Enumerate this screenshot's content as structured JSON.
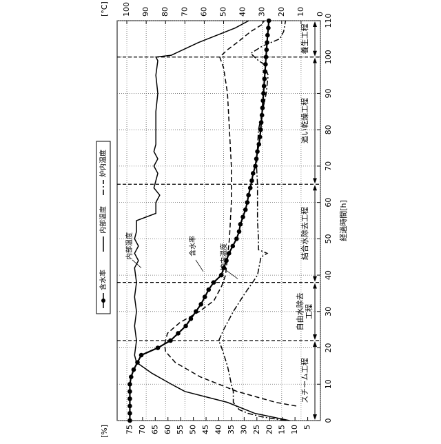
{
  "chart_data": {
    "type": "line",
    "xlabel": "経過時間[h]",
    "ylabel": "[%]",
    "y2label": "[°C]",
    "xlim": [
      0,
      110
    ],
    "xticks": [
      0,
      10,
      20,
      30,
      40,
      50,
      60,
      70,
      80,
      90,
      100,
      110
    ],
    "ylim": [
      0,
      80
    ],
    "yticks": [
      5,
      10,
      15,
      20,
      25,
      30,
      35,
      40,
      45,
      50,
      55,
      60,
      65,
      70,
      75
    ],
    "y2lim": [
      0,
      105
    ],
    "y2ticks": [
      0,
      10,
      20,
      30,
      40,
      50,
      60,
      70,
      80,
      90,
      100
    ],
    "grid": true,
    "legend": "top-left",
    "series": [
      {
        "name": "含水率",
        "color": "#000000",
        "style": "marker",
        "x": [
          0,
          2,
          4,
          6,
          8,
          10,
          12,
          14,
          16,
          18,
          20,
          22,
          24,
          26,
          28,
          30,
          32,
          34,
          36,
          38,
          40,
          42,
          44,
          46,
          48,
          50,
          52,
          54,
          56,
          58,
          60,
          62,
          64,
          66,
          68,
          70,
          72,
          74,
          76,
          78,
          80,
          82,
          84,
          86,
          88,
          90,
          92,
          94,
          96,
          98,
          100,
          102,
          104,
          106,
          108,
          110
        ],
        "values": [
          75,
          75,
          75,
          75,
          75,
          75,
          74.5,
          73.5,
          72,
          70.5,
          64,
          59,
          56,
          53,
          51,
          49,
          47,
          45.5,
          44,
          42,
          39,
          38,
          37,
          36,
          34.5,
          33,
          32,
          31.5,
          30.5,
          29.5,
          28.8,
          28.3,
          27.6,
          27,
          26.5,
          25.6,
          25.2,
          24.8,
          24.2,
          23.8,
          23.5,
          23.3,
          23,
          22.8,
          22.6,
          22.4,
          22.2,
          22,
          21.8,
          21.6,
          21.4,
          21.2,
          21,
          20.8,
          20.5,
          20.3
        ]
      },
      {
        "name": "内部温度",
        "color": "#000000",
        "style": "solid",
        "axis": "y2",
        "x": [
          0,
          2,
          5,
          8,
          10,
          13,
          16,
          18,
          22,
          26,
          30,
          34,
          38,
          42,
          44,
          46,
          48,
          50,
          52,
          54,
          55,
          57,
          60,
          62,
          64,
          66,
          68,
          70,
          72,
          74,
          76,
          80,
          85,
          90,
          95,
          99,
          100,
          100.5,
          104,
          108,
          110
        ],
        "values": [
          16,
          34,
          48,
          70,
          77,
          87,
          95,
          96,
          95,
          96,
          95,
          96,
          95,
          96,
          94,
          96,
          94,
          96,
          95,
          95,
          95,
          85,
          85,
          83,
          86,
          85,
          84,
          86,
          84,
          86,
          85,
          85,
          85,
          84,
          85,
          84,
          85,
          77,
          63,
          44,
          37
        ]
      },
      {
        "color": "#000000",
        "style": "dashed",
        "axis": "y2",
        "x": [
          4,
          5,
          8,
          12,
          16,
          19,
          21,
          24,
          27,
          30,
          33,
          37,
          40,
          50,
          60,
          70,
          80,
          90,
          97,
          100,
          102,
          104,
          107,
          109,
          110
        ],
        "values": [
          12.5,
          23,
          43,
          62,
          75,
          80,
          80.5,
          79,
          72.5,
          62.5,
          55,
          51,
          49,
          47,
          46,
          46,
          47,
          48,
          50,
          52,
          48,
          43,
          36,
          30,
          29
        ]
      },
      {
        "name": "炉内温度",
        "color": "#000000",
        "style": "dashdot",
        "axis": "y2",
        "x": [
          0,
          1,
          2,
          3,
          5,
          8,
          10,
          15,
          20,
          22,
          25,
          30,
          35,
          38,
          40,
          45,
          46,
          47,
          50,
          55,
          60,
          65,
          70,
          75,
          80,
          85,
          90,
          95,
          98,
          99,
          101,
          103,
          105,
          107,
          110
        ],
        "values": [
          18,
          30,
          37.5,
          42,
          45,
          45,
          46,
          48,
          51,
          52.5,
          50,
          45,
          39,
          35,
          32.5,
          30.7,
          27.5,
          32,
          32,
          32.5,
          32.5,
          32.5,
          33,
          32.5,
          32,
          30,
          28,
          27,
          29,
          32,
          36,
          30,
          21,
          19,
          18
        ]
      }
    ],
    "annotations": [
      "内部温度",
      "含水率",
      "炉内温度"
    ],
    "phase_bounds": [
      22,
      38,
      65,
      100
    ],
    "phases": [
      {
        "label": "スチーム工程",
        "start": 0,
        "end": 22
      },
      {
        "label": "自由水除去\n工程",
        "start": 22,
        "end": 38
      },
      {
        "label": "結合水除去工程",
        "start": 38,
        "end": 65
      },
      {
        "label": "追い乾燥工程",
        "start": 65,
        "end": 100
      },
      {
        "label": "養生工程",
        "start": 100,
        "end": 110
      }
    ]
  }
}
